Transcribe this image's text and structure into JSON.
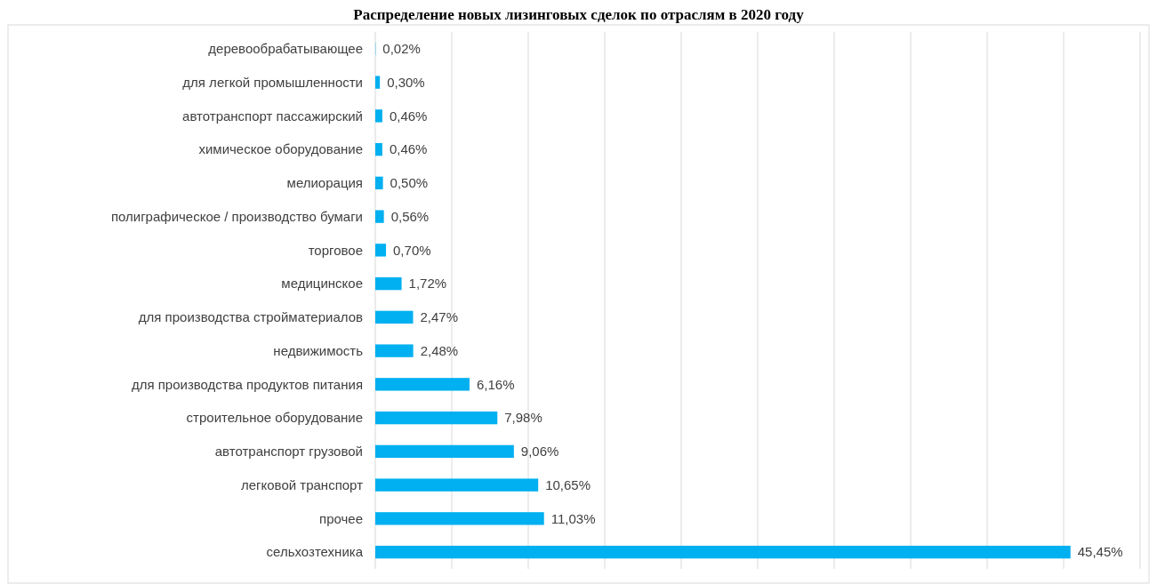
{
  "chart_data": {
    "type": "bar",
    "orientation": "horizontal",
    "title": "Распределение новых лизинговых сделок по отраслям в 2020 году",
    "categories": [
      "деревообрабатывающее",
      "для легкой промышленности",
      "автотранспорт пассажирский",
      "химическое оборудование",
      "мелиорация",
      "полиграфическое / производство бумаги",
      "торговое",
      "медицинское",
      "для производства стройматериалов",
      "недвижимость",
      "для производства продуктов питания",
      "строительное оборудование",
      "автотранспорт грузовой",
      "легковой транспорт",
      "прочее",
      "сельхозтехника"
    ],
    "values": [
      0.02,
      0.3,
      0.46,
      0.46,
      0.5,
      0.56,
      0.7,
      1.72,
      2.47,
      2.48,
      6.16,
      7.98,
      9.06,
      10.65,
      11.03,
      45.45
    ],
    "value_labels": [
      "0,02%",
      "0,30%",
      "0,46%",
      "0,46%",
      "0,50%",
      "0,56%",
      "0,70%",
      "1,72%",
      "2,47%",
      "2,48%",
      "6,16%",
      "7,98%",
      "9,06%",
      "10,65%",
      "11,03%",
      "45,45%"
    ],
    "color": "#00b0f0",
    "xlim": [
      0,
      50
    ],
    "xticks": [
      {
        "value": 0,
        "label": null
      },
      {
        "value": 5,
        "label": null
      },
      {
        "value": 10,
        "label": null
      },
      {
        "value": 15,
        "label": null
      },
      {
        "value": 20,
        "label": null
      },
      {
        "value": 25,
        "label": null
      },
      {
        "value": 30,
        "label": null
      },
      {
        "value": 35,
        "label": null
      },
      {
        "value": 40,
        "label": null
      },
      {
        "value": 45,
        "label": null
      },
      {
        "value": 50,
        "label": null
      }
    ],
    "grid": "x",
    "tick_labels": "y"
  }
}
